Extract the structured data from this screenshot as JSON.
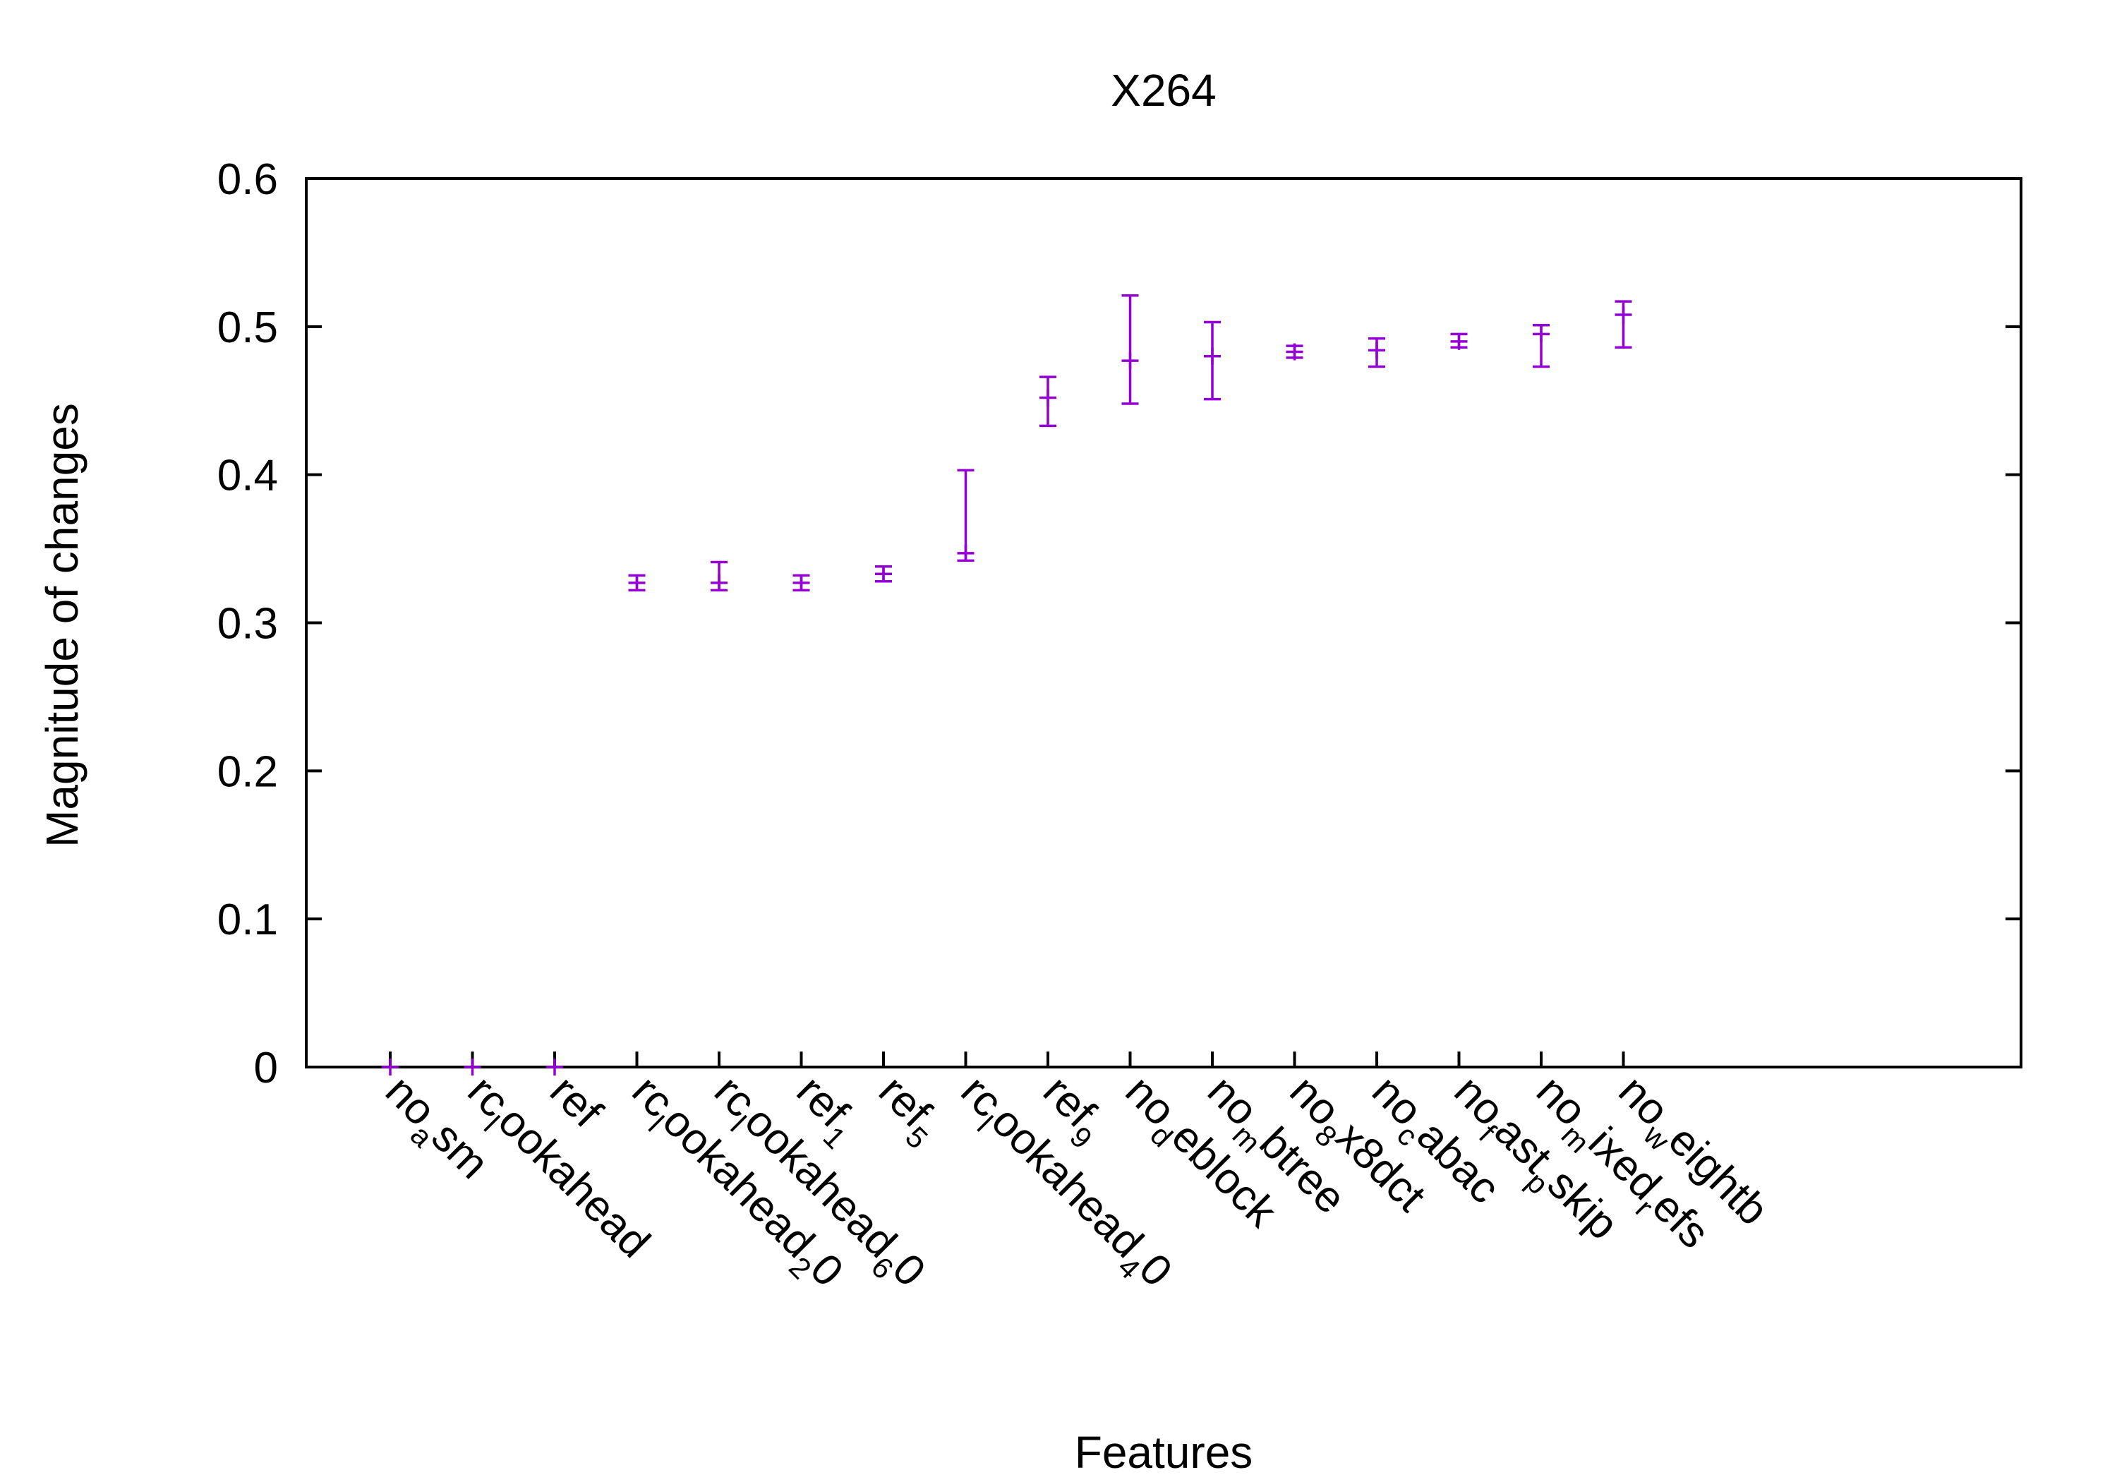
{
  "chart_data": {
    "type": "scatter",
    "title": "X264",
    "xlabel": "Features",
    "ylabel": "Magnitude of changes",
    "ylim": [
      0,
      0.6
    ],
    "yticks": [
      "0",
      "0.1",
      "0.2",
      "0.3",
      "0.4",
      "0.5",
      "0.6"
    ],
    "grid": false,
    "legend": "none",
    "colors": {
      "series": "#9400d3",
      "axis": "#000000"
    },
    "categories": [
      {
        "text": "no",
        "sub": "a",
        "rest": "sm"
      },
      {
        "text": "rc",
        "sub": "l",
        "rest": "ookahead"
      },
      {
        "text": "ref",
        "sub": "",
        "rest": ""
      },
      {
        "text": "rc",
        "sub": "l",
        "rest": "ookahead",
        "sub2": "2",
        "rest2": "0"
      },
      {
        "text": "rc",
        "sub": "l",
        "rest": "ookahead",
        "sub2": "6",
        "rest2": "0"
      },
      {
        "text": "ref",
        "sub": "1",
        "rest": ""
      },
      {
        "text": "ref",
        "sub": "5",
        "rest": ""
      },
      {
        "text": "rc",
        "sub": "l",
        "rest": "ookahead",
        "sub2": "4",
        "rest2": "0"
      },
      {
        "text": "ref",
        "sub": "9",
        "rest": ""
      },
      {
        "text": "no",
        "sub": "d",
        "rest": "eblock"
      },
      {
        "text": "no",
        "sub": "m",
        "rest": "btree"
      },
      {
        "text": "no",
        "sub": "8",
        "rest": "x8dct"
      },
      {
        "text": "no",
        "sub": "c",
        "rest": "abac"
      },
      {
        "text": "no",
        "sub": "f",
        "rest": "ast",
        "sub2": "p",
        "rest2": "skip"
      },
      {
        "text": "no",
        "sub": "m",
        "rest": "ixed",
        "sub2": "r",
        "rest2": "efs"
      },
      {
        "text": "no",
        "sub": "w",
        "rest": "eightb"
      }
    ],
    "series": [
      {
        "values": [
          0.0,
          0.0,
          0.0,
          0.327,
          0.327,
          0.327,
          0.333,
          0.347,
          0.452,
          0.477,
          0.48,
          0.483,
          0.484,
          0.49,
          0.495,
          0.508
        ],
        "low": [
          0.0,
          0.0,
          0.0,
          0.322,
          0.322,
          0.322,
          0.328,
          0.342,
          0.433,
          0.448,
          0.451,
          0.479,
          0.473,
          0.486,
          0.473,
          0.486
        ],
        "high": [
          0.0,
          0.0,
          0.0,
          0.332,
          0.341,
          0.332,
          0.338,
          0.403,
          0.466,
          0.521,
          0.503,
          0.487,
          0.492,
          0.495,
          0.501,
          0.517
        ]
      }
    ]
  }
}
